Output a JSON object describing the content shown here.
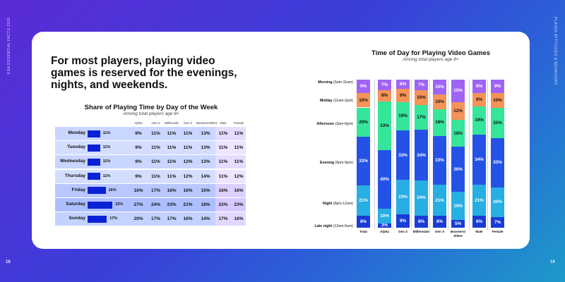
{
  "sidebar": {
    "left_text": "ESA ESSENTIAL FACTS 2026",
    "right_text": "PLAYER ATTITUDES & BEHAVIORS",
    "page_left": "18",
    "page_right": "19"
  },
  "headline": "For most players, playing video games is reserved for the evenings, nights, and weekends.",
  "colors": {
    "bar_blue": "#0b22d4",
    "late_night": "#1a3cd6",
    "night": "#27aee3",
    "evening": "#2452e6",
    "afternoon": "#35e59a",
    "midday": "#f59358",
    "morning": "#a064f4"
  },
  "chart_data": [
    {
      "type": "table",
      "title": "Share of Playing Time by Day of the Week",
      "subtitle": "Among total players age 8+",
      "columns": [
        "Alpha",
        "Gen Z",
        "Millennials",
        "Gen X",
        "Boomers/Silent",
        "Male",
        "Female"
      ],
      "rows": [
        {
          "day": "Monday",
          "total": 11,
          "total_label": "11%",
          "cells": [
            "9%",
            "11%",
            "11%",
            "11%",
            "13%",
            "11%",
            "11%"
          ]
        },
        {
          "day": "Tuesday",
          "total": 11,
          "total_label": "11%",
          "cells": [
            "9%",
            "11%",
            "11%",
            "11%",
            "13%",
            "11%",
            "11%"
          ]
        },
        {
          "day": "Wednesday",
          "total": 11,
          "total_label": "11%",
          "cells": [
            "9%",
            "11%",
            "11%",
            "12%",
            "13%",
            "11%",
            "11%"
          ]
        },
        {
          "day": "Thursday",
          "total": 11,
          "total_label": "11%",
          "cells": [
            "9%",
            "11%",
            "11%",
            "12%",
            "14%",
            "11%",
            "12%"
          ]
        },
        {
          "day": "Friday",
          "total": 16,
          "total_label": "16%",
          "cells": [
            "16%",
            "17%",
            "16%",
            "16%",
            "15%",
            "16%",
            "16%"
          ]
        },
        {
          "day": "Saturday",
          "total": 22,
          "total_label": "22%",
          "cells": [
            "27%",
            "24%",
            "23%",
            "21%",
            "18%",
            "22%",
            "23%"
          ]
        },
        {
          "day": "Sunday",
          "total": 17,
          "total_label": "17%",
          "cells": [
            "20%",
            "17%",
            "17%",
            "16%",
            "14%",
            "17%",
            "16%"
          ]
        }
      ]
    },
    {
      "type": "bar",
      "stacked": true,
      "title": "Time of Day for Playing Video Games",
      "subtitle": "Among total players age 8+",
      "categories": [
        "Total",
        "Alpha",
        "Gen Z",
        "Millennials",
        "Gen X",
        "Boomers/ Silent",
        "Male",
        "Female"
      ],
      "segment_labels": [
        {
          "bold": "Late night",
          "range": " (12am-6am)"
        },
        {
          "bold": "Night",
          "range": " (9pm-12am)"
        },
        {
          "bold": "Evening",
          "range": " (6pm-9pm)"
        },
        {
          "bold": "Afternoon",
          "range": " (2pm-6pm)"
        },
        {
          "bold": "Midday",
          "range": " (11am-2pm)"
        },
        {
          "bold": "Morning",
          "range": " (6am-11am)"
        }
      ],
      "series": [
        {
          "name": "Late night (12am-6am)",
          "values": [
            8,
            3,
            9,
            8,
            8,
            5,
            8,
            7
          ]
        },
        {
          "name": "Night (9pm-12am)",
          "values": [
            21,
            10,
            23,
            24,
            21,
            19,
            21,
            20
          ]
        },
        {
          "name": "Evening (6pm-9pm)",
          "values": [
            33,
            40,
            33,
            34,
            33,
            30,
            34,
            33
          ]
        },
        {
          "name": "Afternoon (2pm-6pm)",
          "values": [
            20,
            33,
            19,
            17,
            18,
            18,
            19,
            20
          ]
        },
        {
          "name": "Midday (11am-2pm)",
          "values": [
            10,
            8,
            9,
            10,
            10,
            12,
            9,
            10
          ]
        },
        {
          "name": "Morning (6am-11am)",
          "values": [
            9,
            7,
            6,
            7,
            10,
            15,
            9,
            9
          ]
        }
      ]
    }
  ]
}
